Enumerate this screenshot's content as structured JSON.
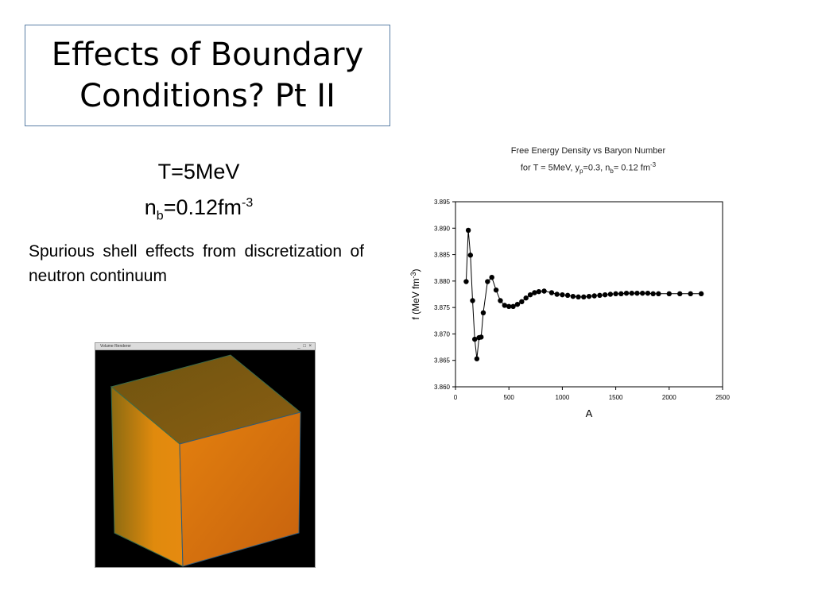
{
  "slide": {
    "title": "Effects of Boundary\nConditions? Pt II",
    "params": {
      "temp": "T=5MeV",
      "density_base": "n",
      "density_sub": "b",
      "density_value": "=0.12fm",
      "density_sup": "-3"
    },
    "description": "Spurious shell effects from discretization of neutron continuum",
    "cube_window": {
      "title": "Volume Renderer",
      "controls": "_ □ ×"
    }
  },
  "chart_data": {
    "type": "line",
    "title": "Free Energy Density vs Baryon Number",
    "subtitle_parts": [
      "for T = 5MeV, y",
      "p",
      "=0.3, n",
      "b",
      "= 0.12 fm",
      "-3"
    ],
    "xlabel": "A",
    "ylabel": "f (MeV fm-3)",
    "ylabel_parts": [
      "f (MeV fm",
      "-3",
      ")"
    ],
    "xlim": [
      0,
      2500
    ],
    "ylim": [
      3.86,
      3.895
    ],
    "xticks": [
      "0",
      "500",
      "1000",
      "1500",
      "2000",
      "2500"
    ],
    "yticks": [
      "3.860",
      "3.865",
      "3.870",
      "3.875",
      "3.880",
      "3.885",
      "3.890",
      "3.895"
    ],
    "markers": true,
    "x": [
      100,
      120,
      140,
      160,
      180,
      200,
      220,
      240,
      260,
      300,
      340,
      380,
      420,
      460,
      500,
      540,
      580,
      620,
      660,
      700,
      740,
      780,
      830,
      900,
      950,
      1000,
      1050,
      1100,
      1150,
      1200,
      1250,
      1300,
      1350,
      1400,
      1450,
      1500,
      1550,
      1600,
      1650,
      1700,
      1750,
      1800,
      1850,
      1900,
      2000,
      2100,
      2200,
      2300
    ],
    "y": [
      3.8799,
      3.8896,
      3.8849,
      3.8763,
      3.869,
      3.8653,
      3.8693,
      3.8694,
      3.874,
      3.8799,
      3.8807,
      3.8783,
      3.8763,
      3.8754,
      3.8752,
      3.8752,
      3.8756,
      3.8761,
      3.8768,
      3.8774,
      3.8778,
      3.878,
      3.8781,
      3.8778,
      3.8775,
      3.8774,
      3.8773,
      3.8771,
      3.877,
      3.877,
      3.8771,
      3.8772,
      3.8773,
      3.8774,
      3.8775,
      3.8776,
      3.8776,
      3.8777,
      3.8777,
      3.8777,
      3.8777,
      3.8777,
      3.8776,
      3.8776,
      3.8776,
      3.8776,
      3.8776,
      3.8776
    ]
  }
}
